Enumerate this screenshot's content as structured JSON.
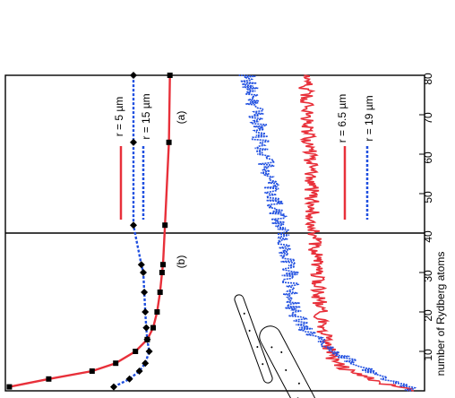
{
  "chart_data": [
    {
      "panel_label": "(a)",
      "type": "line",
      "x_range": [
        0,
        80
      ],
      "series": [
        {
          "name": "r = 5 µm",
          "color": "#e8303a",
          "style": "solid",
          "marker": "square",
          "x": [
            1,
            3,
            5,
            7,
            10,
            13,
            16,
            20,
            25,
            30,
            32,
            42,
            63,
            80
          ],
          "y": [
            0.98,
            0.78,
            0.56,
            0.44,
            0.34,
            0.28,
            0.25,
            0.23,
            0.215,
            0.205,
            0.2,
            0.19,
            0.17,
            0.165
          ]
        },
        {
          "name": "r = 15 µm",
          "color": "#1f4fe0",
          "style": "dotted",
          "marker": "diamond",
          "x": [
            1,
            3,
            5,
            7,
            10,
            13,
            16,
            20,
            25,
            30,
            32,
            42,
            63,
            80
          ],
          "y": [
            0.45,
            0.37,
            0.32,
            0.29,
            0.27,
            0.28,
            0.285,
            0.29,
            0.295,
            0.3,
            0.31,
            0.35,
            0.35,
            0.35
          ]
        }
      ],
      "legend": [
        "r = 5 µm",
        "r = 15 µm"
      ]
    },
    {
      "panel_label": "(b)",
      "type": "line",
      "x_range": [
        0,
        80
      ],
      "xlabel": "number of Rydberg atoms",
      "xticks": [
        "10",
        "20",
        "30",
        "40",
        "50",
        "60",
        "70",
        "80"
      ],
      "series": [
        {
          "name": "r = 6.5 µm",
          "color": "#e8303a",
          "style": "noisy solid",
          "x": [
            0,
            2,
            5,
            8,
            12,
            16,
            20,
            25,
            30,
            40,
            50,
            60,
            70,
            80
          ],
          "y": [
            0.05,
            0.2,
            0.35,
            0.42,
            0.45,
            0.47,
            0.48,
            0.49,
            0.5,
            0.51,
            0.52,
            0.53,
            0.54,
            0.55
          ]
        },
        {
          "name": "r = 19 µm",
          "color": "#1f4fe0",
          "style": "noisy dotted",
          "x": [
            0,
            2,
            5,
            8,
            12,
            16,
            20,
            25,
            30,
            40,
            50,
            60,
            70,
            80
          ],
          "y": [
            0.05,
            0.12,
            0.26,
            0.36,
            0.46,
            0.56,
            0.6,
            0.62,
            0.62,
            0.66,
            0.7,
            0.74,
            0.78,
            0.82
          ]
        }
      ],
      "legend": [
        "r = 6.5 µm",
        "r = 19 µm"
      ]
    }
  ]
}
